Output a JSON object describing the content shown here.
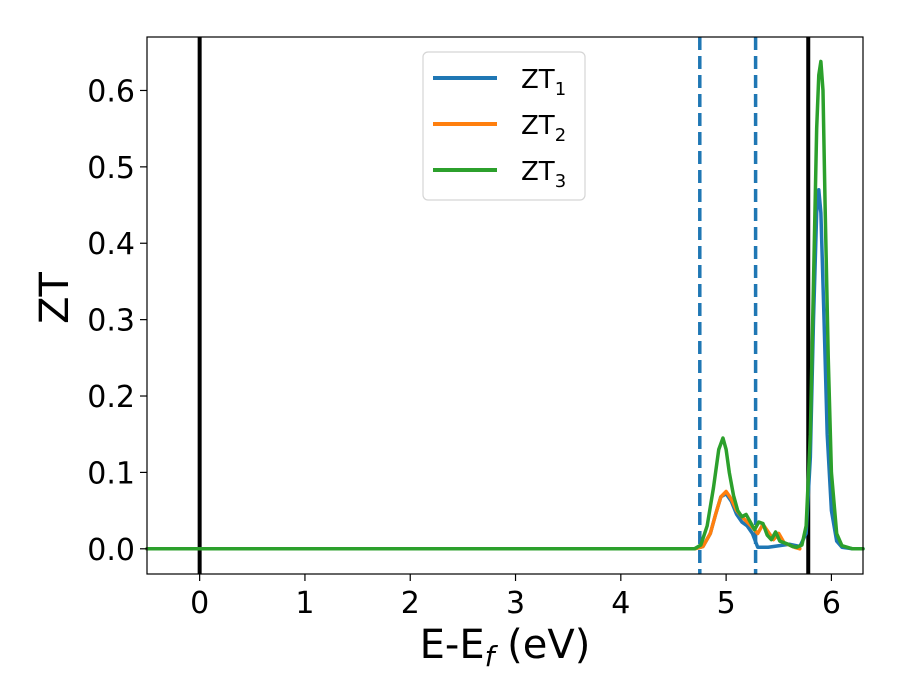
{
  "chart_data": {
    "type": "line",
    "xlabel": {
      "main": "E-E",
      "sub": "f",
      "unit": " (eV)"
    },
    "ylabel": "ZT",
    "xlim": [
      -0.5,
      6.3
    ],
    "ylim": [
      -0.033,
      0.67
    ],
    "xticks": [
      0,
      1,
      2,
      3,
      4,
      5,
      6
    ],
    "yticks": [
      0.0,
      0.1,
      0.2,
      0.3,
      0.4,
      0.5,
      0.6
    ],
    "ytick_labels": [
      "0.0",
      "0.1",
      "0.2",
      "0.3",
      "0.4",
      "0.5",
      "0.6"
    ],
    "grid": false,
    "legend_position": "top-center",
    "vlines": [
      {
        "x": 0.0,
        "style": "solid",
        "color": "#000000"
      },
      {
        "x": 4.75,
        "style": "dashed",
        "color": "#1f77b4"
      },
      {
        "x": 5.28,
        "style": "dashed",
        "color": "#1f77b4"
      },
      {
        "x": 5.78,
        "style": "solid",
        "color": "#000000"
      }
    ],
    "series": [
      {
        "name": "ZT",
        "sub": "1",
        "color": "#1f77b4",
        "x": [
          -0.5,
          4.7,
          4.78,
          4.85,
          4.9,
          4.95,
          5.0,
          5.05,
          5.1,
          5.15,
          5.2,
          5.25,
          5.3,
          5.4,
          5.5,
          5.6,
          5.7,
          5.76,
          5.8,
          5.83,
          5.86,
          5.88,
          5.9,
          5.93,
          5.96,
          6.0,
          6.05,
          6.1,
          6.2,
          6.3
        ],
        "y": [
          0,
          0,
          0.003,
          0.02,
          0.045,
          0.068,
          0.072,
          0.062,
          0.045,
          0.035,
          0.03,
          0.02,
          0.002,
          0.002,
          0.004,
          0.006,
          0.003,
          0.02,
          0.12,
          0.3,
          0.44,
          0.47,
          0.44,
          0.3,
          0.15,
          0.05,
          0.01,
          0.002,
          0,
          0
        ]
      },
      {
        "name": "ZT",
        "sub": "2",
        "color": "#ff7f0e",
        "x": [
          -0.5,
          4.7,
          4.78,
          4.85,
          4.9,
          4.95,
          5.0,
          5.05,
          5.1,
          5.15,
          5.2,
          5.25,
          5.3,
          5.35,
          5.4,
          5.45,
          5.5,
          5.55,
          5.6,
          5.65,
          5.7
        ],
        "y": [
          0,
          0,
          0.003,
          0.02,
          0.045,
          0.068,
          0.075,
          0.065,
          0.05,
          0.042,
          0.035,
          0.028,
          0.02,
          0.032,
          0.022,
          0.012,
          0.02,
          0.008,
          0.005,
          0.002,
          0
        ]
      },
      {
        "name": "ZT",
        "sub": "3",
        "color": "#2ca02c",
        "x": [
          -0.5,
          4.7,
          4.76,
          4.82,
          4.88,
          4.93,
          4.97,
          5.0,
          5.03,
          5.07,
          5.11,
          5.15,
          5.19,
          5.23,
          5.27,
          5.31,
          5.35,
          5.39,
          5.43,
          5.47,
          5.51,
          5.55,
          5.59,
          5.63,
          5.67,
          5.72,
          5.76,
          5.8,
          5.83,
          5.86,
          5.88,
          5.9,
          5.92,
          5.94,
          5.97,
          6.0,
          6.05,
          6.1,
          6.2,
          6.3
        ],
        "y": [
          0,
          0,
          0.005,
          0.03,
          0.08,
          0.13,
          0.145,
          0.13,
          0.1,
          0.07,
          0.05,
          0.042,
          0.045,
          0.035,
          0.025,
          0.035,
          0.033,
          0.018,
          0.012,
          0.022,
          0.01,
          0.008,
          0.006,
          0.003,
          0.002,
          0.005,
          0.03,
          0.15,
          0.35,
          0.55,
          0.62,
          0.638,
          0.6,
          0.45,
          0.25,
          0.1,
          0.02,
          0.004,
          0,
          0
        ]
      }
    ]
  }
}
